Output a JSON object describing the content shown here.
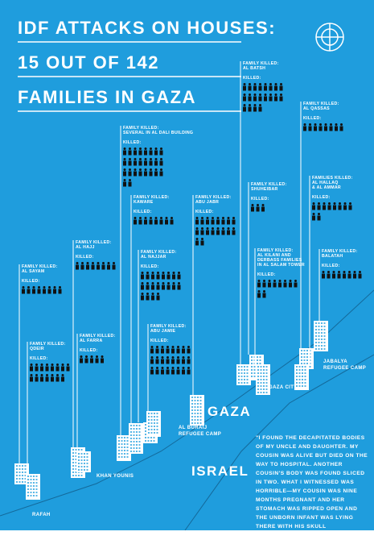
{
  "header": {
    "title_lines": [
      "IDF ATTACKS ON HOUSES:",
      "15 OUT OF 142",
      "FAMILIES IN GAZA"
    ]
  },
  "families": [
    {
      "label": "FAMILY KILLED:",
      "name": [
        "AL SAYAM"
      ],
      "killed_label": "KILLED:",
      "killed": 8
    },
    {
      "label": "FAMILY KILLED:",
      "name": [
        "QDEIR"
      ],
      "killed_label": "KILLED:",
      "killed": 15
    },
    {
      "label": "FAMILY KILLED:",
      "name": [
        "AL HAJJ"
      ],
      "killed_label": "KILLED:",
      "killed": 8
    },
    {
      "label": "FAMILY KILLED:",
      "name": [
        "AL FARRA"
      ],
      "killed_label": "KILLED:",
      "killed": 5
    },
    {
      "label": "FAMILY KILLED:",
      "name": [
        "SEVERAL IN AL DALI BUILDING"
      ],
      "killed_label": "KILLED:",
      "killed": 26
    },
    {
      "label": "FAMILY KILLED:",
      "name": [
        "KAWARE"
      ],
      "killed_label": "KILLED:",
      "killed": 8
    },
    {
      "label": "FAMILY KILLED:",
      "name": [
        "AL NAJJAR"
      ],
      "killed_label": "KILLED:",
      "killed": 20
    },
    {
      "label": "FAMILY KILLED:",
      "name": [
        "ABU JAMIE"
      ],
      "killed_label": "KILLED:",
      "killed": 24
    },
    {
      "label": "FAMILY KILLED:",
      "name": [
        "ABU JABR"
      ],
      "killed_label": "KILLED:",
      "killed": 18
    },
    {
      "label": "FAMILY KILLED:",
      "name": [
        "AL BATSH"
      ],
      "killed_label": "KILLED:",
      "killed": 20
    },
    {
      "label": "FAMILY KILLED:",
      "name": [
        "SHUHEIBAR"
      ],
      "killed_label": "KILLED:",
      "killed": 3
    },
    {
      "label": "FAMILY KILLED:",
      "name": [
        "AL KILANI AND",
        "DERBASS FAMILIES",
        "IN AL SALAM TOWER"
      ],
      "killed_label": "KILLED:",
      "killed": 10
    },
    {
      "label": "FAMILY KILLED:",
      "name": [
        "AL QASSAS"
      ],
      "killed_label": "KILLED:",
      "killed": 8
    },
    {
      "label": "FAMILIES KILLED:",
      "name": [
        "AL HALLAQ",
        "& AL AMMAR"
      ],
      "killed_label": "KILLED:",
      "killed": 10
    },
    {
      "label": "FAMILY KILLED:",
      "name": [
        "BALATAH"
      ],
      "killed_label": "KILLED:",
      "killed": 8
    }
  ],
  "places": {
    "gaza": "GAZA",
    "israel": "ISRAEL",
    "khan_younis": "KHAN YOUNIS",
    "rafah": "RAFAH",
    "al_buraij": [
      "AL BURAIJ",
      "REFUGEE CAMP"
    ],
    "gaza_city": "GAZA CITY",
    "jabalya": [
      "JABALYA",
      "REFUGEE CAMP"
    ]
  },
  "quote": "\"I found the decapitated bodies of my uncle and daughter. My cousin was alive but died on the way to hospital. Another cousin's body was found sliced in two. What I witnessed was horrible—my cousin was nine months pregnant and her stomach was ripped open and the unborn infant was lying there with his skull shattered.\""
}
